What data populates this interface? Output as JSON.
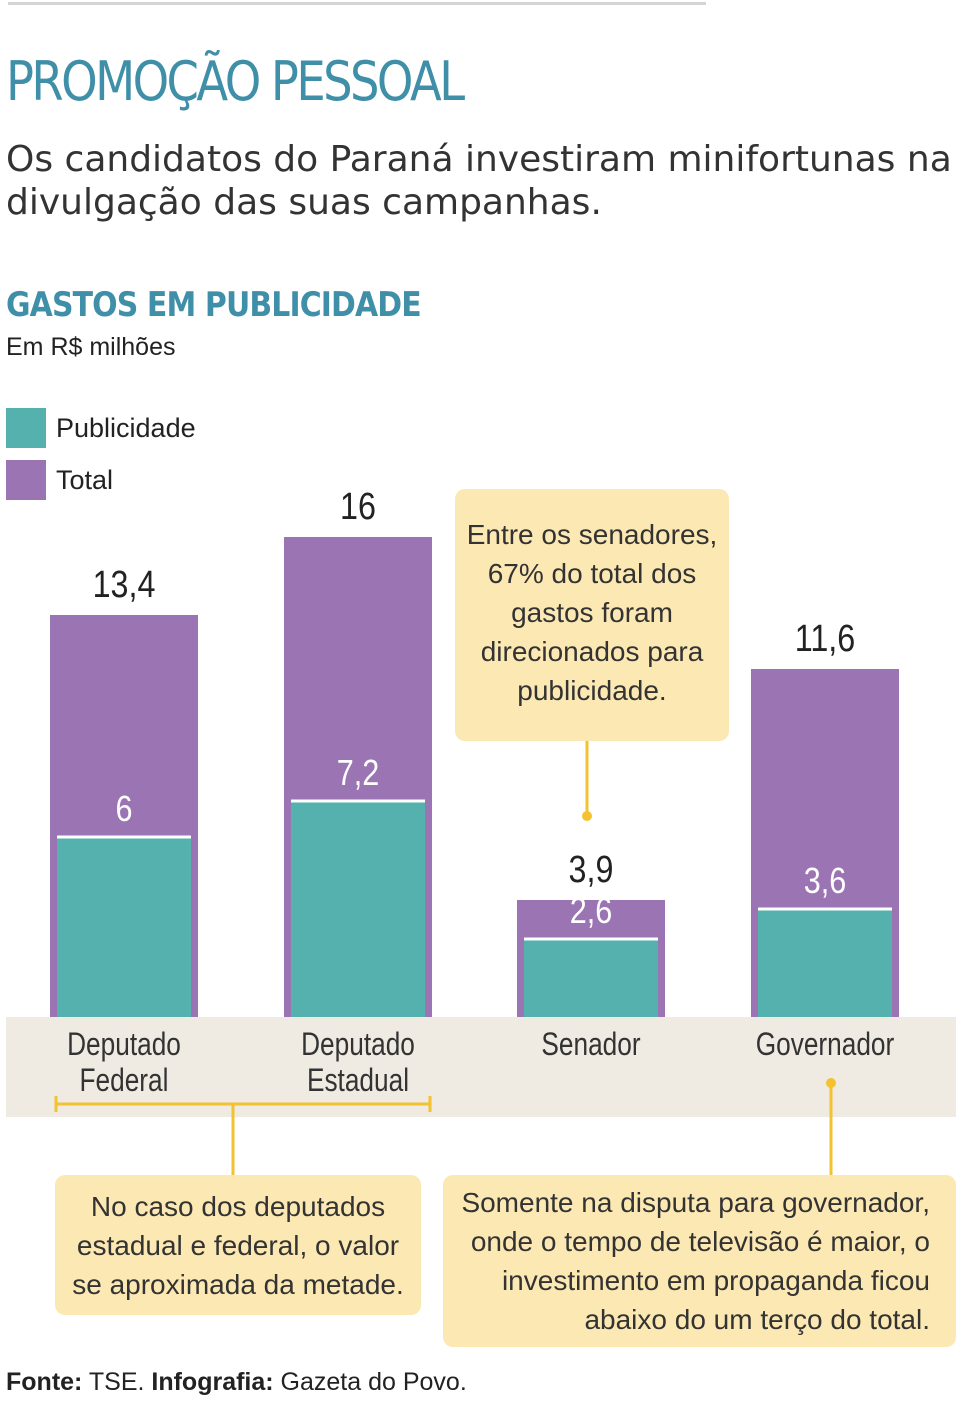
{
  "header": {
    "headline": "PROMOÇÃO PESSOAL",
    "subhead": "Os candidatos do Paraná investiram minifortunas na divulgação das suas campanhas."
  },
  "colors": {
    "publicidade": "#55b1ad",
    "total": "#9b74b4",
    "callout": "#fce8b2",
    "connector": "#f2c230",
    "band": "#efebe3",
    "accent": "#3f8fa9"
  },
  "chart_data": {
    "type": "bar",
    "title": "GASTOS EM PUBLICIDADE",
    "unit": "Em R$ milhões",
    "categories": [
      [
        "Deputado",
        "Federal"
      ],
      [
        "Deputado",
        "Estadual"
      ],
      [
        "Senador"
      ],
      [
        "Governador"
      ]
    ],
    "series": [
      {
        "name": "Publicidade",
        "values": [
          6,
          7.2,
          2.6,
          3.6
        ],
        "labels": [
          "6",
          "7,2",
          "2,6",
          "3,6"
        ]
      },
      {
        "name": "Total",
        "values": [
          13.4,
          16,
          3.9,
          11.6
        ],
        "labels": [
          "13,4",
          "16",
          "3,9",
          "11,6"
        ]
      }
    ],
    "ylim": [
      0,
      16
    ],
    "grid": false,
    "legend": "top-left"
  },
  "legend": {
    "publicidade": "Publicidade",
    "total": "Total"
  },
  "callouts": {
    "senador": "Entre os senadores, 67% do total dos gastos foram direcionados para publicidade.",
    "deputados": "No caso dos deputados estadual e federal, o valor se aproximada da metade.",
    "governador": "Somente na disputa para governador, onde o tempo de televisão é maior, o investimento em propaganda ficou abaixo do um terço do total."
  },
  "footer": {
    "fonte_label": "Fonte:",
    "fonte_value": " TSE. ",
    "infografia_label": "Infografia:",
    "infografia_value": " Gazeta do Povo."
  }
}
